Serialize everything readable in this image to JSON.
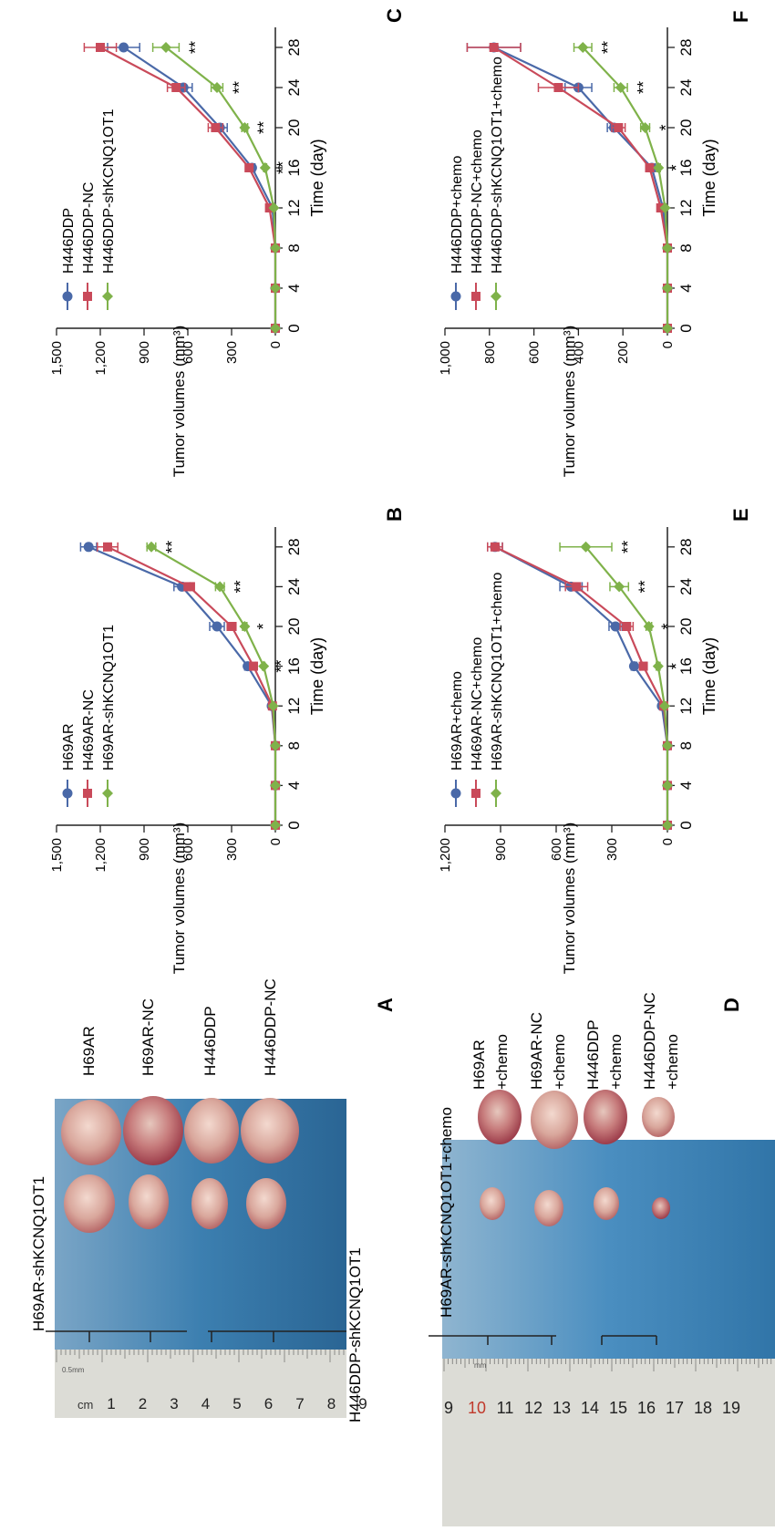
{
  "colors": {
    "blue": "#4a69a8",
    "red": "#c94a5a",
    "green": "#7fb24a",
    "axis": "#222222",
    "photo_bg": "#2f6f9e",
    "ruler": "#dcdcd6"
  },
  "panels": {
    "A": {
      "letter": "A",
      "labels": [
        "H69AR",
        "H69AR-NC",
        "H446DDP",
        "H446DDP-NC"
      ],
      "bottom_labels": [
        "H69AR-shKCNQ1OT1",
        "H446DDP-shKCNQ1OT1"
      ],
      "ruler_unit": "cm",
      "ruler_small": "0.5mm",
      "ruler_numbers": [
        "1",
        "2",
        "3",
        "4",
        "5",
        "6",
        "7",
        "8",
        "9"
      ]
    },
    "D": {
      "letter": "D",
      "top_label": "H69AR-shKCNQ1OT1+chemo",
      "labels": [
        [
          "H69AR",
          "+chemo"
        ],
        [
          "H69AR-NC",
          "+chemo"
        ],
        [
          "H446DDP",
          "+chemo"
        ],
        [
          "H446DDP-NC",
          "+chemo"
        ]
      ],
      "ruler_small": "mm",
      "ruler_numbers": [
        "9",
        "10",
        "11",
        "12",
        "13",
        "14",
        "15",
        "16",
        "17",
        "18",
        "19"
      ]
    }
  },
  "chart_data": [
    {
      "panel": "B",
      "type": "line",
      "xlabel": "Time (day)",
      "ylabel": "Tumor volumes (mm³)",
      "x": [
        0,
        4,
        8,
        12,
        16,
        20,
        24,
        28
      ],
      "xlim": [
        0,
        30
      ],
      "ylim": [
        0,
        1500
      ],
      "yticks": [
        0,
        300,
        600,
        900,
        1200,
        1500
      ],
      "ytick_labels": [
        "0",
        "300",
        "600",
        "900",
        "1,200",
        "1,500"
      ],
      "series": [
        {
          "name": "H69AR",
          "color": "blue",
          "marker": "circle",
          "values": [
            0,
            0,
            0,
            25,
            190,
            400,
            640,
            1280
          ],
          "err": [
            0,
            0,
            0,
            4,
            20,
            50,
            55,
            55
          ]
        },
        {
          "name": "H469AR-NC",
          "color": "red",
          "marker": "square",
          "values": [
            0,
            0,
            0,
            20,
            150,
            300,
            590,
            1150
          ],
          "err": [
            0,
            0,
            0,
            4,
            15,
            30,
            35,
            70
          ]
        },
        {
          "name": "H69AR-shKCNQ1OT1",
          "color": "green",
          "marker": "diamond",
          "values": [
            0,
            0,
            0,
            15,
            80,
            210,
            380,
            850
          ],
          "err": [
            0,
            0,
            0,
            4,
            8,
            15,
            30,
            30
          ]
        }
      ],
      "annotations": [
        {
          "x": 16,
          "text": "**"
        },
        {
          "x": 20,
          "text": "*"
        },
        {
          "x": 24,
          "text": "**"
        },
        {
          "x": 28,
          "text": "**"
        }
      ]
    },
    {
      "panel": "C",
      "type": "line",
      "xlabel": "Time (day)",
      "ylabel": "Tumor volumes (mm³)",
      "x": [
        0,
        4,
        8,
        12,
        16,
        20,
        24,
        28
      ],
      "xlim": [
        0,
        30
      ],
      "ylim": [
        0,
        1500
      ],
      "yticks": [
        0,
        300,
        600,
        900,
        1200,
        1500
      ],
      "ytick_labels": [
        "0",
        "300",
        "600",
        "900",
        "1,200",
        "1,500"
      ],
      "series": [
        {
          "name": "H446DDP",
          "color": "blue",
          "marker": "circle",
          "values": [
            0,
            0,
            0,
            20,
            160,
            380,
            630,
            1040
          ],
          "err": [
            0,
            0,
            0,
            4,
            20,
            50,
            60,
            110
          ]
        },
        {
          "name": "H446DDP-NC",
          "color": "red",
          "marker": "square",
          "values": [
            0,
            0,
            0,
            40,
            180,
            410,
            680,
            1200
          ],
          "err": [
            0,
            0,
            0,
            4,
            20,
            50,
            60,
            110
          ]
        },
        {
          "name": "H446DDP-shKCNQ1OT1",
          "color": "green",
          "marker": "diamond",
          "values": [
            0,
            0,
            0,
            10,
            70,
            210,
            400,
            750
          ],
          "err": [
            0,
            0,
            0,
            4,
            10,
            20,
            40,
            90
          ]
        }
      ],
      "annotations": [
        {
          "x": 16,
          "text": "**"
        },
        {
          "x": 20,
          "text": "**"
        },
        {
          "x": 24,
          "text": "**"
        },
        {
          "x": 28,
          "text": "**"
        }
      ]
    },
    {
      "panel": "E",
      "type": "line",
      "xlabel": "Time (day)",
      "ylabel": "Tumor volumes (mm³)",
      "x": [
        0,
        4,
        8,
        12,
        16,
        20,
        24,
        28
      ],
      "xlim": [
        0,
        30
      ],
      "ylim": [
        0,
        1200
      ],
      "yticks": [
        0,
        300,
        600,
        900,
        1200
      ],
      "ytick_labels": [
        "0",
        "300",
        "600",
        "900",
        "1,200"
      ],
      "series": [
        {
          "name": "H69AR+chemo",
          "color": "blue",
          "marker": "circle",
          "values": [
            0,
            0,
            0,
            30,
            180,
            280,
            520,
            930
          ],
          "err": [
            0,
            0,
            0,
            5,
            15,
            35,
            60,
            40
          ]
        },
        {
          "name": "H469AR-NC+chemo",
          "color": "red",
          "marker": "square",
          "values": [
            0,
            0,
            0,
            20,
            130,
            220,
            490,
            930
          ],
          "err": [
            0,
            0,
            0,
            5,
            15,
            35,
            60,
            40
          ]
        },
        {
          "name": "H69AR-shKCNQ1OT1+chemo",
          "color": "green",
          "marker": "diamond",
          "values": [
            0,
            0,
            0,
            15,
            50,
            100,
            260,
            440
          ],
          "err": [
            0,
            0,
            0,
            4,
            10,
            15,
            50,
            140
          ]
        }
      ],
      "annotations": [
        {
          "x": 16,
          "text": "*"
        },
        {
          "x": 20,
          "text": "*"
        },
        {
          "x": 24,
          "text": "**"
        },
        {
          "x": 28,
          "text": "**"
        }
      ]
    },
    {
      "panel": "F",
      "type": "line",
      "xlabel": "Time (day)",
      "ylabel": "Tumor volumes (mm³)",
      "x": [
        0,
        4,
        8,
        12,
        16,
        20,
        24,
        28
      ],
      "xlim": [
        0,
        30
      ],
      "ylim": [
        0,
        1000
      ],
      "yticks": [
        0,
        200,
        400,
        600,
        800,
        1000
      ],
      "ytick_labels": [
        "0",
        "200",
        "400",
        "600",
        "800",
        "1,000"
      ],
      "series": [
        {
          "name": "H446DDP+chemo",
          "color": "blue",
          "marker": "circle",
          "values": [
            0,
            0,
            0,
            20,
            70,
            240,
            400,
            780
          ],
          "err": [
            0,
            0,
            0,
            4,
            15,
            30,
            60,
            120
          ]
        },
        {
          "name": "H446DDP-NC+chemo",
          "color": "red",
          "marker": "square",
          "values": [
            0,
            0,
            0,
            30,
            80,
            220,
            490,
            780
          ],
          "err": [
            0,
            0,
            0,
            4,
            15,
            30,
            90,
            120
          ]
        },
        {
          "name": "H446DDP-shKCNQ1OT1+chemo",
          "color": "green",
          "marker": "diamond",
          "values": [
            0,
            0,
            0,
            10,
            40,
            100,
            210,
            380
          ],
          "err": [
            0,
            0,
            0,
            4,
            8,
            20,
            30,
            40
          ]
        }
      ],
      "annotations": [
        {
          "x": 16,
          "text": "*"
        },
        {
          "x": 20,
          "text": "*"
        },
        {
          "x": 24,
          "text": "**"
        },
        {
          "x": 28,
          "text": "**"
        }
      ]
    }
  ]
}
